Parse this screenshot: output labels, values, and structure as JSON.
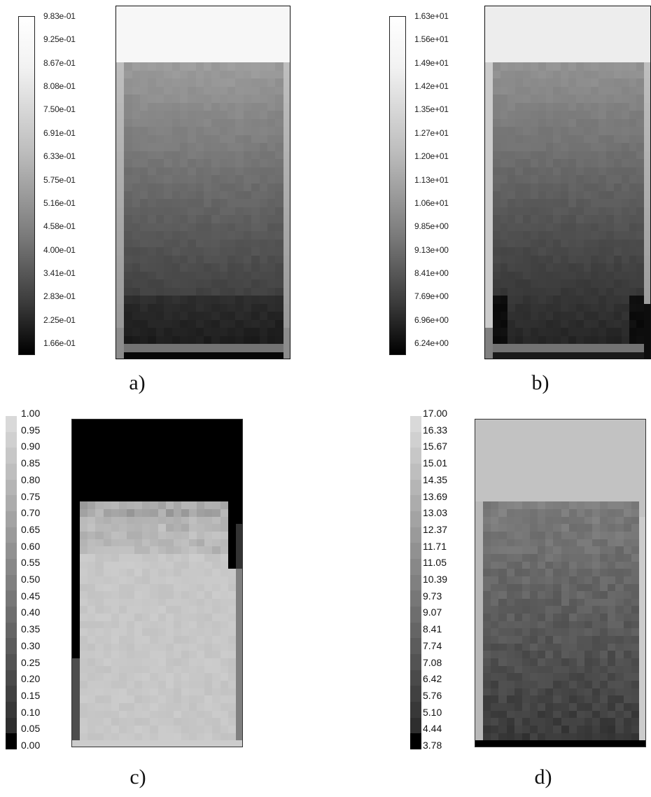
{
  "panels": [
    {
      "id": "a",
      "caption": "a)",
      "legend_style": "gradient-boxed",
      "legend_labels": [
        "9.83e-01",
        "9.25e-01",
        "8.67e-01",
        "8.08e-01",
        "7.50e-01",
        "6.91e-01",
        "6.33e-01",
        "5.75e-01",
        "5.16e-01",
        "4.58e-01",
        "4.00e-01",
        "3.41e-01",
        "2.83e-01",
        "2.25e-01",
        "1.66e-01"
      ]
    },
    {
      "id": "b",
      "caption": "b)",
      "legend_style": "gradient-boxed",
      "legend_labels": [
        "1.63e+01",
        "1.56e+01",
        "1.49e+01",
        "1.42e+01",
        "1.35e+01",
        "1.27e+01",
        "1.20e+01",
        "1.13e+01",
        "1.06e+01",
        "9.85e+00",
        "9.13e+00",
        "8.41e+00",
        "7.69e+00",
        "6.96e+00",
        "6.24e+00"
      ]
    },
    {
      "id": "c",
      "caption": "c)",
      "legend_style": "stepped",
      "legend_labels": [
        "1.00",
        "0.95",
        "0.90",
        "0.85",
        "0.80",
        "0.75",
        "0.70",
        "0.65",
        "0.60",
        "0.55",
        "0.50",
        "0.45",
        "0.40",
        "0.35",
        "0.30",
        "0.25",
        "0.20",
        "0.15",
        "0.10",
        "0.05",
        "0.00"
      ]
    },
    {
      "id": "d",
      "caption": "d)",
      "legend_style": "stepped",
      "legend_labels": [
        "17.00",
        "16.33",
        "15.67",
        "15.01",
        "14.35",
        "13.69",
        "13.03",
        "12.37",
        "11.71",
        "11.05",
        "10.39",
        "9.73",
        "9.07",
        "8.41",
        "7.74",
        "7.08",
        "6.42",
        "5.76",
        "5.10",
        "4.44",
        "3.78"
      ]
    }
  ]
}
